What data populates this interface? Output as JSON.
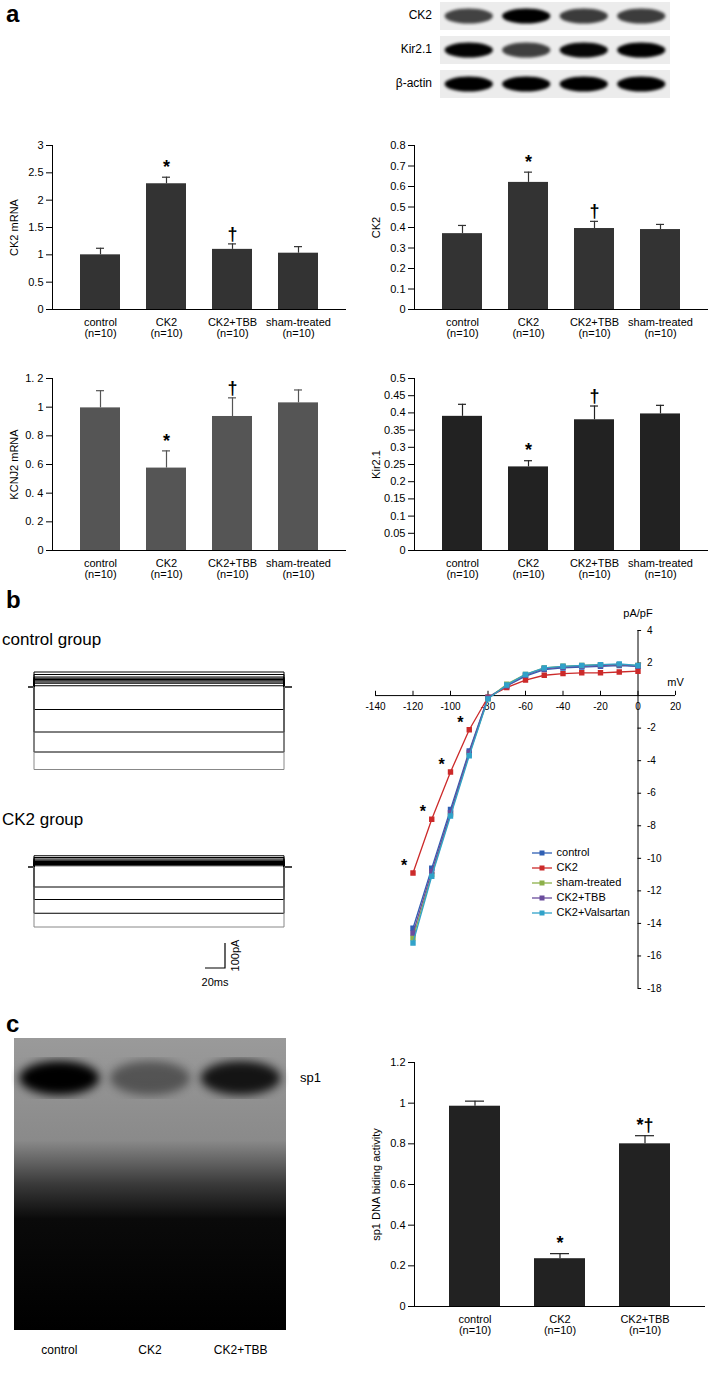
{
  "panel_labels": [
    "a",
    "b",
    "c"
  ],
  "blot": {
    "rows": [
      "CK2",
      "Kir2.1",
      "β-actin"
    ]
  },
  "traces": {
    "groups": [
      {
        "name": "control group",
        "levels": [
          60,
          50,
          40,
          35,
          30,
          25,
          20,
          15,
          5,
          -90,
          -180,
          -260,
          -330
        ]
      },
      {
        "name": "CK2 group",
        "levels": [
          45,
          38,
          32,
          27,
          22,
          18,
          14,
          10,
          5,
          -80,
          -130,
          -185,
          -240
        ]
      }
    ],
    "pulse_duration": 250,
    "scale_bar": {
      "current": 100,
      "current_label": "100pA",
      "time": 20,
      "time_label": "20ms"
    }
  },
  "gel": {
    "lanes": [
      "control",
      "CK2",
      "CK2+TBB"
    ],
    "band_label": "sp1"
  },
  "chart_data": [
    {
      "type": "bar",
      "y_label": "CK2 mRNA",
      "categories": [
        "control\n(n=10)",
        "CK2\n(n=10)",
        "CK2+TBB\n(n=10)",
        "sham-treated\n(n=10)"
      ],
      "values": [
        1.0,
        2.3,
        1.1,
        1.03
      ],
      "errors": [
        0.12,
        0.12,
        0.1,
        0.12
      ],
      "significance": [
        null,
        "*",
        "†",
        null
      ],
      "color": "#333333",
      "ylim": [
        0,
        3
      ],
      "yticks": [
        0,
        0.5,
        1,
        1.5,
        2,
        2.5,
        3
      ]
    },
    {
      "type": "bar",
      "y_label": "CK2",
      "categories": [
        "control\n(n=10)",
        "CK2\n(n=10)",
        "CK2+TBB\n(n=10)",
        "sham-treated\n(n=10)"
      ],
      "values": [
        0.37,
        0.62,
        0.395,
        0.39
      ],
      "errors": [
        0.04,
        0.05,
        0.035,
        0.025
      ],
      "significance": [
        null,
        "*",
        "†",
        null
      ],
      "color": "#333333",
      "ylim": [
        0,
        0.8
      ],
      "yticks": [
        0,
        0.1,
        0.2,
        0.3,
        0.4,
        0.5,
        0.6,
        0.7,
        0.8
      ]
    },
    {
      "type": "bar",
      "y_label": "KCNJ2 mRNA",
      "categories": [
        "control\n(n=10)",
        "CK2\n(n=10)",
        "CK2+TBB\n(n=10)",
        "sham-treated\n(n=10)"
      ],
      "values": [
        0.995,
        0.575,
        0.935,
        1.03
      ],
      "errors": [
        0.12,
        0.12,
        0.13,
        0.09
      ],
      "significance": [
        null,
        "*",
        "†",
        null
      ],
      "color": "#555555",
      "ylim": [
        0,
        1.2
      ],
      "yticks": [
        0,
        {
          "value": 0.2,
          "label": "0. 2"
        },
        {
          "value": 0.4,
          "label": "0. 4"
        },
        {
          "value": 0.6,
          "label": "0. 6"
        },
        {
          "value": 0.8,
          "label": "0. 8"
        },
        1,
        {
          "value": 1.2,
          "label": "1. 2"
        }
      ]
    },
    {
      "type": "bar",
      "y_label": "Kir2.1",
      "categories": [
        "control\n(n=10)",
        "CK2\n(n=10)",
        "CK2+TBB\n(n=10)",
        "sham-treated\n(n=10)"
      ],
      "values": [
        0.39,
        0.243,
        0.38,
        0.397
      ],
      "errors": [
        0.035,
        0.018,
        0.04,
        0.025
      ],
      "significance": [
        null,
        "*",
        "†",
        null
      ],
      "color": "#222222",
      "ylim": [
        0,
        0.5
      ],
      "yticks": [
        0,
        0.05,
        0.1,
        0.15,
        0.2,
        0.25,
        0.3,
        0.35,
        0.4,
        0.45,
        0.5
      ]
    },
    {
      "type": "line",
      "x_label": "mV",
      "y_label": "pA/pF",
      "x": [
        -120,
        -110,
        -100,
        -90,
        -80,
        -70,
        -60,
        -50,
        -40,
        -30,
        -20,
        -10,
        0
      ],
      "series": [
        {
          "name": "control",
          "color": "#2f5fb3",
          "values": [
            -14.3,
            -10.6,
            -7.0,
            -3.4,
            -0.1,
            0.6,
            1.2,
            1.6,
            1.7,
            1.75,
            1.8,
            1.85,
            1.8
          ]
        },
        {
          "name": "CK2",
          "color": "#cc2a2a",
          "values": [
            -10.9,
            -7.6,
            -4.7,
            -2.1,
            -0.1,
            0.5,
            0.95,
            1.25,
            1.35,
            1.4,
            1.4,
            1.45,
            1.5
          ],
          "significance": [
            "*",
            "*",
            "*",
            "*",
            null,
            null,
            null,
            null,
            null,
            null,
            null,
            null,
            null
          ]
        },
        {
          "name": "sham-treated",
          "color": "#8db04a",
          "values": [
            -14.9,
            -11.0,
            -7.3,
            -3.6,
            -0.2,
            0.7,
            1.3,
            1.7,
            1.8,
            1.85,
            1.9,
            1.9,
            1.85
          ]
        },
        {
          "name": "CK2+TBB",
          "color": "#6a4c9c",
          "values": [
            -14.6,
            -10.8,
            -7.2,
            -3.5,
            -0.15,
            0.6,
            1.25,
            1.65,
            1.75,
            1.8,
            1.85,
            1.9,
            1.8
          ]
        },
        {
          "name": "CK2+Valsartan",
          "color": "#31a2c9",
          "values": [
            -15.2,
            -11.1,
            -7.4,
            -3.7,
            -0.2,
            0.65,
            1.3,
            1.7,
            1.8,
            1.85,
            1.9,
            1.95,
            1.85
          ]
        }
      ],
      "xlim": [
        -140,
        20
      ],
      "xticks": [
        -140,
        -120,
        -100,
        -80,
        -60,
        -40,
        -20,
        0,
        20
      ],
      "ylim": [
        -18,
        4
      ],
      "yticks": [
        4,
        2,
        -2,
        -4,
        -6,
        -8,
        -10,
        -12,
        -14,
        -16,
        -18
      ],
      "marker": "square",
      "legend": "bottom-right"
    },
    {
      "type": "bar",
      "y_label": "sp1 DNA biding activity",
      "categories": [
        "control\n(n=10)",
        "CK2\n(n=10)",
        "CK2+TBB\n(n=10)"
      ],
      "values": [
        0.985,
        0.235,
        0.8
      ],
      "errors": [
        0.025,
        0.025,
        0.04
      ],
      "significance": [
        null,
        "*",
        "*†"
      ],
      "color": "#222222",
      "ylim": [
        0,
        1.2
      ],
      "yticks": [
        0,
        0.2,
        0.4,
        0.6,
        0.8,
        1,
        1.2
      ]
    }
  ]
}
